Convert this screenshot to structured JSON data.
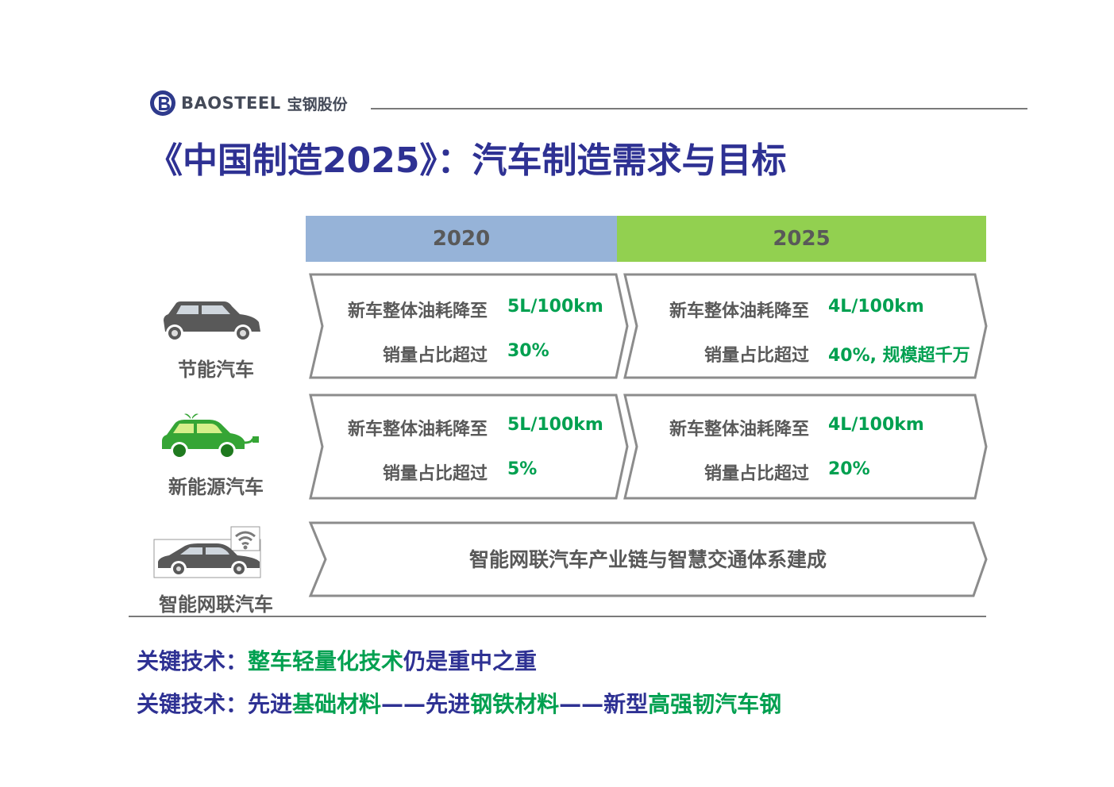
{
  "header": {
    "brand_en": "BAOSTEEL",
    "brand_cn": "宝钢股份",
    "title": "《中国制造2025》：汽车制造需求与目标"
  },
  "years": [
    "2020",
    "2025"
  ],
  "colors": {
    "navy": "#2e3193",
    "green": "#00a050",
    "gray": "#595959",
    "year2020_bg": "#96b3d8",
    "year2025_bg": "#92d050"
  },
  "categories": [
    {
      "label": "节能汽车",
      "icon": "gray-car-icon",
      "cells": [
        {
          "line1_label": "新车整体油耗降至",
          "line1_value": "5L/100km",
          "line2_label": "销量占比超过",
          "line2_value": "30%"
        },
        {
          "line1_label": "新车整体油耗降至",
          "line1_value": "4L/100km",
          "line2_label": "销量占比超过",
          "line2_value": "40%, 规模超千万"
        }
      ]
    },
    {
      "label": "新能源汽车",
      "icon": "green-electric-car-icon",
      "cells": [
        {
          "line1_label": "新车整体油耗降至",
          "line1_value": "5L/100km",
          "line2_label": "销量占比超过",
          "line2_value": "5%"
        },
        {
          "line1_label": "新车整体油耗降至",
          "line1_value": "4L/100km",
          "line2_label": "销量占比超过",
          "line2_value": "20%"
        }
      ]
    },
    {
      "label": "智能网联汽车",
      "icon": "connected-car-icon",
      "wide_text": "智能网联汽车产业链与智慧交通体系建成"
    }
  ],
  "key_tech": [
    {
      "prefix": "关键技术：",
      "parts": [
        {
          "text": "整车轻量化技术",
          "color": "green"
        },
        {
          "text": "仍是重中之重",
          "color": "navy"
        }
      ]
    },
    {
      "prefix": "关键技术：",
      "parts": [
        {
          "text": "先进",
          "color": "navy"
        },
        {
          "text": "基础材料",
          "color": "green"
        },
        {
          "text": "——先进",
          "color": "navy"
        },
        {
          "text": "钢铁材料",
          "color": "green"
        },
        {
          "text": "——新型",
          "color": "navy"
        },
        {
          "text": "高强韧汽车钢",
          "color": "green"
        }
      ]
    }
  ]
}
